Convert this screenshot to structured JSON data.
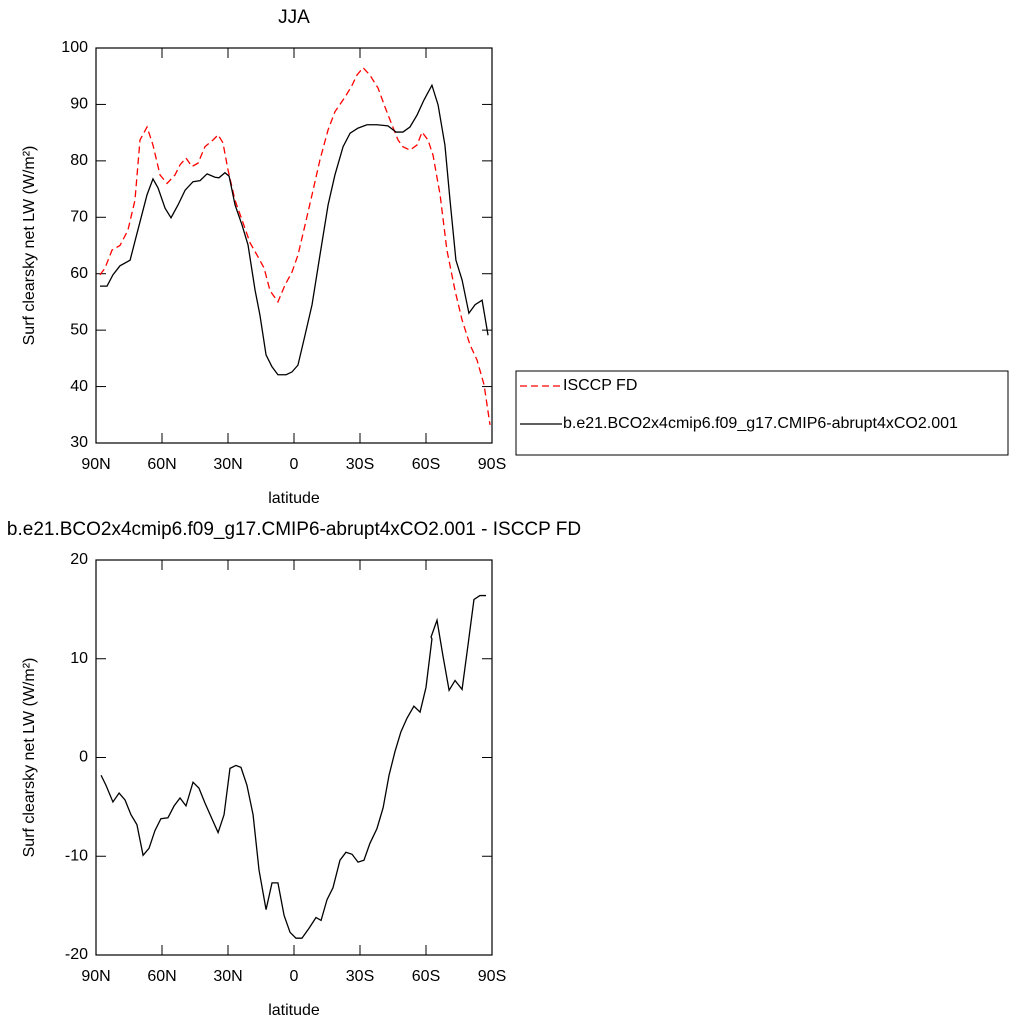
{
  "chart_data": [
    {
      "type": "line",
      "title": "JJA",
      "xlabel": "latitude",
      "ylabel": "Surf clearsky net LW (W/m²)",
      "xlim": [
        90,
        -90
      ],
      "xticks": [
        {
          "value": 90,
          "label": "90N"
        },
        {
          "value": 60,
          "label": "60N"
        },
        {
          "value": 30,
          "label": "30N"
        },
        0,
        {
          "value": -30,
          "label": "30S"
        },
        {
          "value": -60,
          "label": "60S"
        },
        {
          "value": -90,
          "label": "90S"
        }
      ],
      "ylim": [
        30,
        100
      ],
      "yticks": [
        30,
        40,
        50,
        60,
        70,
        80,
        90,
        100
      ],
      "legend": "right",
      "series": [
        {
          "name": "ISCCP FD",
          "color": "#ff0000",
          "line_style": "dashed",
          "x": [
            88.2,
            85.9,
            82.7,
            79.1,
            75.5,
            72.3,
            70,
            66.8,
            64.1,
            60.9,
            57.7,
            54.1,
            51.8,
            49.1,
            46.4,
            43.6,
            40.5,
            36.8,
            34.5,
            32.3,
            30,
            26.8,
            23.6,
            20,
            16.8,
            13.6,
            10.9,
            7.3,
            4.1,
            0.9,
            -1.8,
            -5,
            -8.2,
            -11.8,
            -15.5,
            -18.6,
            -23.2,
            -26.4,
            -28.6,
            -31.4,
            -34.5,
            -38.2,
            -41.4,
            -44.5,
            -47.3,
            -49.5,
            -52.7,
            -55.9,
            -58.2,
            -60.9,
            -63.2,
            -66.4,
            -69.5,
            -73.2,
            -76.4,
            -80,
            -83.2,
            -86.4,
            -89.1
          ],
          "values": [
            59.8,
            61,
            64.2,
            65,
            67.7,
            73,
            83.7,
            86,
            82.8,
            77.5,
            76,
            77.5,
            79.3,
            80.5,
            79,
            79.6,
            82.5,
            83.7,
            84.6,
            83.2,
            78.4,
            73,
            69.5,
            65.5,
            63.3,
            61,
            57,
            55,
            58,
            60.3,
            63.3,
            68.6,
            74,
            80.2,
            85.5,
            88.7,
            91.3,
            93.4,
            95.2,
            96.5,
            95.2,
            92.9,
            89.5,
            86.4,
            83.7,
            82.5,
            81.9,
            82.8,
            85.1,
            83.7,
            81,
            74,
            64.2,
            57,
            51.8,
            47.4,
            44.7,
            40.3,
            33.2
          ]
        },
        {
          "name": "b.e21.BCO2x4cmip6.f09_g17.CMIP6-abrupt4xCO2.001",
          "color": "#000000",
          "line_style": "solid",
          "x": [
            88.2,
            85,
            82.3,
            79.1,
            74.5,
            71.8,
            66.8,
            64.1,
            61.8,
            58.6,
            55.9,
            52.7,
            49.5,
            45.9,
            42.7,
            39.5,
            35.9,
            34.1,
            31.4,
            29.5,
            26.8,
            23.6,
            20.9,
            17.7,
            15.5,
            12.7,
            10,
            7.3,
            3.6,
            0.9,
            -1.8,
            -5,
            -8.2,
            -11.8,
            -15.5,
            -18.6,
            -22.3,
            -25.5,
            -29.1,
            -33.2,
            -37.7,
            -42.7,
            -46.4,
            -49.5,
            -52.7,
            -55.9,
            -59.1,
            -62.7,
            -62.7,
            -65.5,
            -68.6,
            -70.9,
            -73.6,
            -76.4,
            -79.5,
            -82.3,
            -85.5,
            -88.2
          ],
          "values": [
            57.8,
            57.8,
            59.8,
            61.4,
            62.4,
            66.5,
            74,
            76.8,
            75.2,
            71.6,
            69.9,
            72.2,
            74.8,
            76.3,
            76.5,
            77.7,
            77.1,
            77,
            77.9,
            77.3,
            72.2,
            68.6,
            65.1,
            57.1,
            52.7,
            45.6,
            43.5,
            42.1,
            42.1,
            42.6,
            43.8,
            49.1,
            54.5,
            63.3,
            72.2,
            77.5,
            82.5,
            84.9,
            85.8,
            86.4,
            86.4,
            86.2,
            85.1,
            85.1,
            86,
            88.1,
            90.8,
            93.4,
            93.4,
            89.9,
            82.8,
            73.1,
            62.4,
            58.9,
            53,
            54.5,
            55.3,
            49.1
          ]
        }
      ]
    },
    {
      "type": "line",
      "title": "b.e21.BCO2x4cmip6.f09_g17.CMIP6-abrupt4xCO2.001 - ISCCP FD",
      "xlabel": "latitude",
      "ylabel": "Surf clearsky net LW (W/m²)",
      "xlim": [
        90,
        -90
      ],
      "xticks": [
        {
          "value": 90,
          "label": "90N"
        },
        {
          "value": 60,
          "label": "60N"
        },
        {
          "value": 30,
          "label": "30N"
        },
        0,
        {
          "value": -30,
          "label": "30S"
        },
        {
          "value": -60,
          "label": "60S"
        },
        {
          "value": -90,
          "label": "90S"
        }
      ],
      "ylim": [
        -20,
        20
      ],
      "yticks": [
        -20,
        -10,
        0,
        10,
        20
      ],
      "series": [
        {
          "color": "#000000",
          "line_style": "solid",
          "x": [
            87.7,
            85.5,
            82.3,
            79.5,
            76.8,
            74.1,
            71.4,
            68.6,
            65.9,
            63.2,
            60.5,
            57.3,
            54.5,
            51.8,
            49.1,
            45.9,
            43.2,
            40.5,
            37.3,
            34.5,
            31.8,
            29.1,
            26.4,
            24.1,
            21.4,
            18.6,
            15.9,
            12.7,
            10,
            7.3,
            4.5,
            1.8,
            -0.9,
            -3.6,
            -6.8,
            -10,
            -12.3,
            -15,
            -17.7,
            -20.9,
            -23.6,
            -26.4,
            -29.1,
            -31.8,
            -34.5,
            -37.7,
            -40.5,
            -43.2,
            -45.9,
            -48.6,
            -51.4,
            -54.5,
            -57.3,
            -60,
            -62.7,
            -62.3,
            -65,
            -67.7,
            -70.5,
            -73.2,
            -76.4,
            -79.1,
            -81.8,
            -84.5,
            -87.3
          ],
          "values": [
            -1.8,
            -2.8,
            -4.5,
            -3.6,
            -4.3,
            -5.8,
            -6.8,
            -9.9,
            -9.2,
            -7.4,
            -6.2,
            -6.1,
            -4.9,
            -4.1,
            -4.9,
            -2.5,
            -3.1,
            -4.6,
            -6.2,
            -7.6,
            -5.8,
            -1.1,
            -0.8,
            -1,
            -2.8,
            -5.8,
            -11.4,
            -15.4,
            -12.7,
            -12.7,
            -16,
            -17.7,
            -18.3,
            -18.3,
            -17.3,
            -16.2,
            -16.5,
            -14.4,
            -13.2,
            -10.4,
            -9.6,
            -9.8,
            -10.6,
            -10.4,
            -8.7,
            -7.2,
            -5.1,
            -1.8,
            0.6,
            2.6,
            4,
            5.2,
            4.6,
            7.1,
            12,
            12.2,
            13.9,
            10.3,
            6.8,
            7.8,
            6.9,
            11.4,
            16,
            16.4,
            16.4
          ]
        }
      ]
    }
  ]
}
